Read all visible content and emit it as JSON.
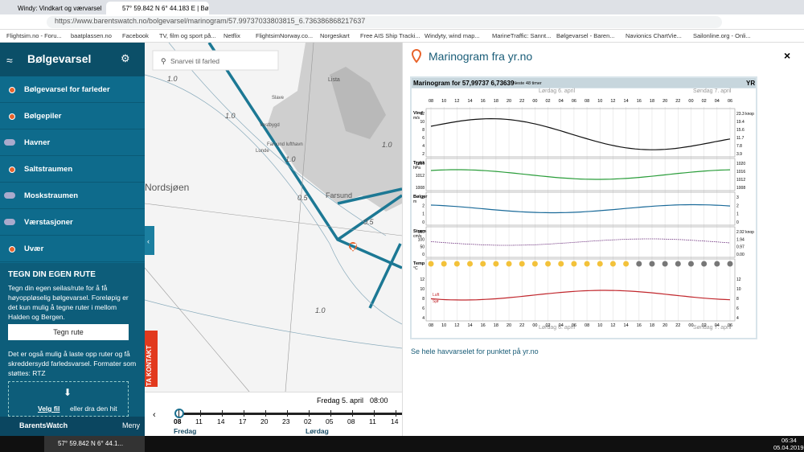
{
  "browser": {
    "tabs": [
      "Windy: Vindkart og værvarsel",
      "57° 59.842 N 6° 44.183 E | Bølgevarsel"
    ],
    "url": "https://www.barentswatch.no/bolgevarsel/marinogram/57.99737033803815_6.736386868217637",
    "bookmarks": [
      "Flightsim.no - Foru...",
      "baatplassen.no",
      "Facebook",
      "TV, film og sport på...",
      "Netflix",
      "FlightsimNorway.co...",
      "Norgeskart",
      "Free AIS Ship Tracki...",
      "Windyty, wind map...",
      "MarineTraffic: Sannt...",
      "Bølgevarsel - Baren...",
      "Navionics ChartVie...",
      "Sailonline.org - Onli..."
    ]
  },
  "sidebar": {
    "title": "Bølgevarsel",
    "menu": [
      "Bølgevarsel for farleder",
      "Bølgepiler",
      "Havner",
      "Saltstraumen",
      "Moskstraumen",
      "Værstasjoner",
      "Uvær"
    ],
    "route_heading": "TEGN DIN EGEN RUTE",
    "route_text": "Tegn din egen seilas/rute for å få høyoppløselig bølgevarsel. Foreløpig er det kun mulig å tegne ruter i mellom Halden og Bergen.",
    "route_button": "Tegn rute",
    "upload_text": "Det er også mulig å laste opp ruter og få skreddersydd farledsvarsel. Formater som støttes: RTZ",
    "upload_link": "Velg fil",
    "upload_rest": "eller dra den hit",
    "brand": "BarentsWatch",
    "menu_button": "Meny",
    "contact": "TA KONTAKT"
  },
  "map": {
    "search_placeholder": "Snarvei til farled",
    "labels": [
      "Nordsjøen",
      "Farsund",
      "Lista",
      "Vestbygd",
      "Slave",
      "Farsund lufthavn",
      "Lunde",
      "1.0",
      "1.0",
      "1.0",
      "1.0",
      "1.0",
      "0.5",
      "0.5"
    ]
  },
  "timeline": {
    "date": "Fredag 5. april",
    "time": "08:00",
    "hours": [
      "08",
      "11",
      "14",
      "17",
      "20",
      "23",
      "02",
      "05",
      "08",
      "11",
      "14"
    ],
    "days": [
      "Fredag",
      "Lørdag"
    ]
  },
  "panel": {
    "title": "Marinogram fra yr.no",
    "link": "Se hele havvarselet for punktet på yr.no",
    "marinogram": {
      "title": "Marinogram for 57,99737 6,73639",
      "subtitle": "Neste 48 timer",
      "logo": "YR",
      "day1": "Lørdag 6. april",
      "day2": "Søndag 7. april",
      "hours": [
        "08",
        "10",
        "12",
        "14",
        "16",
        "18",
        "20",
        "22",
        "00",
        "02",
        "04",
        "06",
        "08",
        "10",
        "12",
        "14",
        "16",
        "18",
        "20",
        "22",
        "00",
        "02",
        "04",
        "06"
      ],
      "panels": [
        {
          "label": "Vind",
          "unit": "m/s",
          "left": [
            "12",
            "10",
            "8",
            "6",
            "4",
            "2"
          ],
          "right": [
            "23.3 knop",
            "19.4",
            "15.6",
            "11.7",
            "7.8",
            "3.9"
          ]
        },
        {
          "label": "Trykk",
          "unit": "hPa",
          "left": [
            "1016",
            "1012",
            "1008"
          ],
          "right": [
            "1020",
            "1016",
            "1012",
            "1008"
          ]
        },
        {
          "label": "Bølger",
          "unit": "m",
          "left": [
            "3",
            "2",
            "1",
            "0"
          ],
          "right": [
            "3",
            "2",
            "1",
            "0"
          ]
        },
        {
          "label": "Strøm",
          "unit": "cm/s",
          "left": [
            "150",
            "100",
            "50",
            "0"
          ],
          "right": [
            "2.92 knop",
            "1.94",
            "0.97",
            "0.00"
          ]
        },
        {
          "label": "Temp",
          "unit": "°C",
          "left": [
            "12",
            "10",
            "8",
            "6",
            "4"
          ],
          "right": [
            "12",
            "10",
            "8",
            "6",
            "4"
          ]
        }
      ],
      "air": "Luft",
      "sea": "Sjø"
    }
  },
  "taskbar": {
    "app": "57° 59.842 N 6° 44.1...",
    "time": "06:34",
    "date": "05.04.2019"
  }
}
